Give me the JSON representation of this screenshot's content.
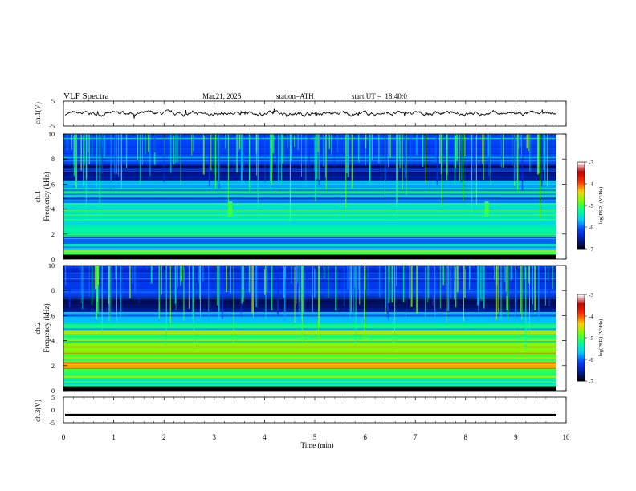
{
  "header": {
    "title": "VLF Spectra",
    "date": "Mar.21, 2025",
    "station": "station=ATH",
    "start_ut": "start UT =  18:40:0"
  },
  "chart_data": [
    {
      "type": "line",
      "panel": "ch1-waveform",
      "ylabel": "ch.1(V)",
      "ylim": [
        -5,
        5
      ],
      "yticks": [
        "5",
        "-5"
      ],
      "xlim": [
        0,
        10
      ],
      "note_values": "noisy trace around 0 V, small spikes up to about ±1 V"
    },
    {
      "type": "heatmap",
      "panel": "ch1-spectrogram",
      "ylabel": "ch.1 Frequency (kHz)",
      "ylim": [
        0,
        10
      ],
      "yticks": [
        "0",
        "2",
        "4",
        "6",
        "8",
        "10"
      ],
      "xlim": [
        0,
        9.8
      ],
      "bands": [
        {
          "from": 0.0,
          "to": 0.3,
          "level": -7.0
        },
        {
          "from": 0.3,
          "to": 0.7,
          "level": -5.0
        },
        {
          "from": 0.7,
          "to": 1.2,
          "level": -5.6
        },
        {
          "from": 1.2,
          "to": 1.8,
          "level": -6.0
        },
        {
          "from": 1.8,
          "to": 2.5,
          "level": -5.3
        },
        {
          "from": 2.5,
          "to": 3.5,
          "level": -5.4
        },
        {
          "from": 3.5,
          "to": 4.5,
          "level": -5.5
        },
        {
          "from": 4.5,
          "to": 5.3,
          "level": -5.9
        },
        {
          "from": 5.3,
          "to": 6.3,
          "level": -5.8
        },
        {
          "from": 6.3,
          "to": 7.5,
          "level": -6.6
        },
        {
          "from": 7.5,
          "to": 10.0,
          "level": -6.1
        }
      ],
      "colorbar": {
        "label": "log(PSD) (V²/Hz)",
        "range": [
          -7,
          -3
        ],
        "ticks": [
          "-3",
          "-4",
          "-5",
          "-6",
          "-7"
        ]
      }
    },
    {
      "type": "heatmap",
      "panel": "ch2-spectrogram",
      "ylabel": "ch.2 Frequency (kHz)",
      "ylim": [
        0,
        10
      ],
      "yticks": [
        "0",
        "2",
        "4",
        "6",
        "8",
        "10"
      ],
      "xlim": [
        0,
        9.8
      ],
      "bands": [
        {
          "from": 0.0,
          "to": 0.3,
          "level": -6.8
        },
        {
          "from": 0.3,
          "to": 1.0,
          "level": -5.2
        },
        {
          "from": 1.0,
          "to": 1.8,
          "level": -5.0
        },
        {
          "from": 1.8,
          "to": 2.3,
          "level": -4.2
        },
        {
          "from": 2.3,
          "to": 3.0,
          "level": -4.9
        },
        {
          "from": 3.0,
          "to": 3.8,
          "level": -4.7
        },
        {
          "from": 3.8,
          "to": 4.5,
          "level": -5.1
        },
        {
          "from": 4.5,
          "to": 4.8,
          "level": -4.6
        },
        {
          "from": 4.8,
          "to": 5.5,
          "level": -5.3
        },
        {
          "from": 5.5,
          "to": 6.3,
          "level": -5.7
        },
        {
          "from": 6.3,
          "to": 7.5,
          "level": -6.7
        },
        {
          "from": 7.5,
          "to": 10.0,
          "level": -6.2
        }
      ],
      "colorbar": {
        "label": "log(PSD) (V²/Hz)",
        "range": [
          -7,
          -3
        ],
        "ticks": [
          "-3",
          "-4",
          "-5",
          "-6",
          "-7"
        ]
      }
    },
    {
      "type": "line",
      "panel": "ch3-waveform",
      "ylabel": "ch.3(V)",
      "ylim": [
        -5,
        5
      ],
      "yticks": [
        "5",
        "0",
        "-5"
      ],
      "xlim": [
        0,
        10
      ],
      "constant_value": -2
    }
  ],
  "x_axis": {
    "xlabel": "Time (min)",
    "ticks": [
      "0",
      "1",
      "2",
      "3",
      "4",
      "5",
      "6",
      "7",
      "8",
      "9",
      "10"
    ],
    "range": [
      0,
      10
    ]
  },
  "colormap": [
    "#000000",
    "#001aa0",
    "#0040ff",
    "#00c8ff",
    "#00ff90",
    "#70ff00",
    "#ffd000",
    "#ff3000",
    "#c00000",
    "#ffffff"
  ]
}
